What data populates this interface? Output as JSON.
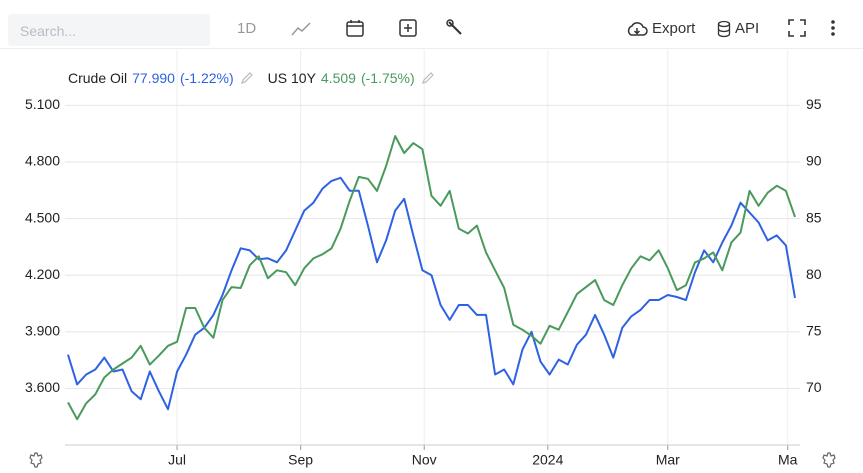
{
  "toolbar": {
    "search_placeholder": "Search...",
    "interval": "1D",
    "export": "Export",
    "api": "API"
  },
  "chart_data": {
    "type": "line",
    "series": [
      {
        "name": "Crude Oil",
        "legend_value": "77.990",
        "legend_change": "(-1.22%)",
        "color": "#2f62e3",
        "axis": "y2",
        "values": [
          72.98,
          70.35,
          71.23,
          71.67,
          72.72,
          71.49,
          71.67,
          69.74,
          69.04,
          71.49,
          69.74,
          68.16,
          71.49,
          72.98,
          74.74,
          75.35,
          76.49,
          78.25,
          80.44,
          82.37,
          82.19,
          81.4,
          81.49,
          81.14,
          82.19,
          83.95,
          85.7,
          86.4,
          87.63,
          88.33,
          88.6,
          87.46,
          87.46,
          84.39,
          81.14,
          83.07,
          85.7,
          86.75,
          83.51,
          80.44,
          80.0,
          77.37,
          76.05,
          77.37,
          77.37,
          76.49,
          76.49,
          71.23,
          71.67,
          70.35,
          73.42,
          75.0,
          72.37,
          71.23,
          72.54,
          72.11,
          73.86,
          74.74,
          76.49,
          74.74,
          72.72,
          75.35,
          76.37,
          76.93,
          77.81,
          77.81,
          78.25,
          78.07,
          77.81,
          80.26,
          82.19,
          81.14,
          82.89,
          84.39,
          86.4,
          85.53,
          84.65,
          83.07,
          83.51,
          82.63,
          77.99
        ]
      },
      {
        "name": "US 10Y",
        "legend_value": "4.509",
        "legend_change": "(-1.75%)",
        "color": "#4a9a5c",
        "axis": "y",
        "values": [
          3.526,
          3.437,
          3.521,
          3.568,
          3.658,
          3.7,
          3.732,
          3.763,
          3.826,
          3.726,
          3.774,
          3.826,
          3.847,
          4.026,
          4.026,
          3.921,
          3.868,
          4.068,
          4.137,
          4.132,
          4.253,
          4.3,
          4.184,
          4.226,
          4.216,
          4.147,
          4.237,
          4.289,
          4.311,
          4.342,
          4.447,
          4.595,
          4.721,
          4.711,
          4.647,
          4.779,
          4.937,
          4.847,
          4.9,
          4.868,
          4.621,
          4.568,
          4.647,
          4.447,
          4.421,
          4.463,
          4.321,
          4.226,
          4.132,
          3.937,
          3.911,
          3.879,
          3.837,
          3.932,
          3.911,
          4.005,
          4.1,
          4.137,
          4.174,
          4.068,
          4.042,
          4.147,
          4.237,
          4.3,
          4.279,
          4.332,
          4.237,
          4.121,
          4.147,
          4.268,
          4.289,
          4.321,
          4.226,
          4.374,
          4.426,
          4.647,
          4.568,
          4.637,
          4.674,
          4.647,
          4.509
        ]
      }
    ],
    "xlim": [
      0,
      80
    ],
    "xticks": [
      {
        "value": 12,
        "label": "Jul"
      },
      {
        "value": 25.6,
        "label": "Sep"
      },
      {
        "value": 39.2,
        "label": "Nov"
      },
      {
        "value": 52.8,
        "label": "2024"
      },
      {
        "value": 66,
        "label": "Mar"
      },
      {
        "value": 79.2,
        "label": "Ma"
      }
    ],
    "ylim": [
      3.3,
      5.33
    ],
    "yticks": [
      {
        "value": 3.6,
        "label": "3.600"
      },
      {
        "value": 3.9,
        "label": "3.900"
      },
      {
        "value": 4.2,
        "label": "4.200"
      },
      {
        "value": 4.5,
        "label": "4.500"
      },
      {
        "value": 4.8,
        "label": "4.800"
      },
      {
        "value": 5.1,
        "label": "5.100"
      }
    ],
    "y2lim": [
      65,
      98.83
    ],
    "y2ticks": [
      70,
      75,
      80,
      85,
      90,
      95
    ],
    "grid": true
  }
}
